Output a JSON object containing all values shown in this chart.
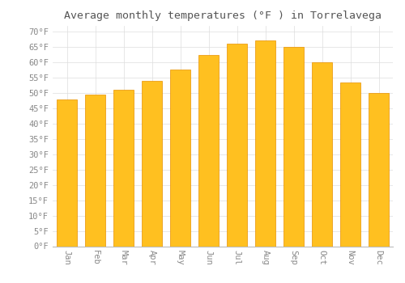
{
  "title": "Average monthly temperatures (°F ) in Torrelavega",
  "months": [
    "Jan",
    "Feb",
    "Mar",
    "Apr",
    "May",
    "Jun",
    "Jul",
    "Aug",
    "Sep",
    "Oct",
    "Nov",
    "Dec"
  ],
  "values": [
    48,
    49.5,
    51,
    54,
    57.5,
    62.5,
    66,
    67,
    65,
    60,
    53.5,
    50
  ],
  "bar_color_top": "#FFC020",
  "bar_color_bottom": "#FFA000",
  "bar_edge_color": "#E89000",
  "background_color": "#FFFFFF",
  "grid_color": "#DDDDDD",
  "yticks": [
    0,
    5,
    10,
    15,
    20,
    25,
    30,
    35,
    40,
    45,
    50,
    55,
    60,
    65,
    70
  ],
  "ylim": [
    0,
    72
  ],
  "title_fontsize": 9.5,
  "tick_fontsize": 7.5,
  "font_family": "monospace",
  "tick_color": "#888888",
  "title_color": "#555555"
}
